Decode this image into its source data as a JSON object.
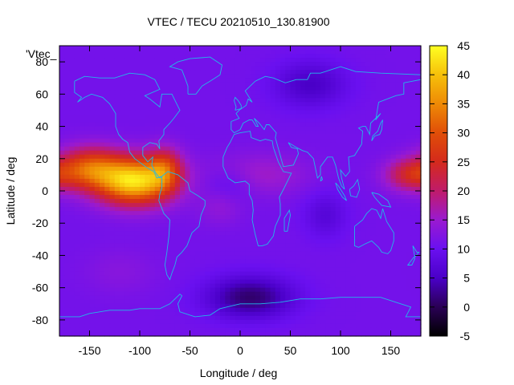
{
  "chart_data": {
    "type": "heatmap",
    "title": "VTEC / TECU 20210510_130.81900",
    "xlabel": "Longitude / deg",
    "ylabel": "Latitude / deg",
    "series_key": "'Vtec_",
    "xlim": [
      -180,
      180
    ],
    "ylim": [
      -90,
      90
    ],
    "x_ticks": [
      -150,
      -100,
      -50,
      0,
      50,
      100,
      150
    ],
    "y_ticks": [
      -80,
      -60,
      -40,
      -20,
      0,
      20,
      40,
      60,
      80
    ],
    "colorbar": {
      "range": [
        -5,
        45
      ],
      "ticks": [
        -5,
        0,
        5,
        10,
        15,
        20,
        25,
        30,
        35,
        40,
        45
      ],
      "palette": "gnuplot black-blue-purple-red-orange-yellow"
    },
    "grid_resolution_deg": [
      5,
      2.5
    ],
    "features": [
      {
        "region": "equatorial anomaly over eastern Pacific / Americas",
        "lon": -100,
        "lat": 5,
        "vtec": 42
      },
      {
        "region": "equatorial band over western Pacific",
        "lon": 165,
        "lat": 10,
        "vtec": 23
      },
      {
        "region": "equatorial band over Africa",
        "lon": 10,
        "lat": 10,
        "vtec": 16
      },
      {
        "region": "depletion south of Africa / Antarctica",
        "lon": 10,
        "lat": -65,
        "vtec": 0
      },
      {
        "region": "depletion over northern Asia",
        "lon": 70,
        "lat": 65,
        "vtec": 5
      },
      {
        "region": "mid-latitude background",
        "lon": 100,
        "lat": -40,
        "vtec": 11
      }
    ]
  }
}
